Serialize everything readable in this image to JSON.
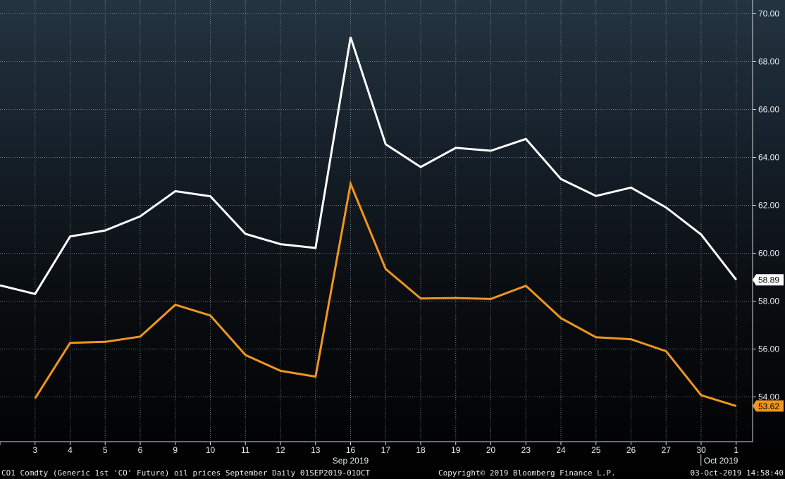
{
  "chart_data": {
    "type": "line",
    "title": "",
    "xlabel": "",
    "ylabel": "",
    "categories": [
      "",
      "3",
      "4",
      "5",
      "6",
      "9",
      "10",
      "11",
      "12",
      "13",
      "16",
      "17",
      "18",
      "19",
      "20",
      "23",
      "24",
      "25",
      "26",
      "27",
      "30",
      "1"
    ],
    "x_dates": [
      "2019-09-02",
      "2019-09-03",
      "2019-09-04",
      "2019-09-05",
      "2019-09-06",
      "2019-09-09",
      "2019-09-10",
      "2019-09-11",
      "2019-09-12",
      "2019-09-13",
      "2019-09-16",
      "2019-09-17",
      "2019-09-18",
      "2019-09-19",
      "2019-09-20",
      "2019-09-23",
      "2019-09-24",
      "2019-09-25",
      "2019-09-26",
      "2019-09-27",
      "2019-09-30",
      "2019-10-01"
    ],
    "period_labels": [
      {
        "text": "Sep 2019",
        "at_category": "16"
      },
      {
        "text": "Oct 2019",
        "at_category": "1"
      }
    ],
    "ylim": [
      53,
      70.5
    ],
    "yticks": [
      "54.00",
      "56.00",
      "58.00",
      "60.00",
      "62.00",
      "64.00",
      "66.00",
      "68.00",
      "70.00"
    ],
    "grid": true,
    "series": [
      {
        "color": "#ffffff",
        "values": [
          58.66,
          58.3,
          60.7,
          60.95,
          61.54,
          62.59,
          62.38,
          60.81,
          60.38,
          60.22,
          69.02,
          64.55,
          63.6,
          64.4,
          64.28,
          64.77,
          63.1,
          62.39,
          62.74,
          61.91,
          60.78,
          58.89
        ],
        "last_label": "58.89"
      },
      {
        "color": "#f0961e",
        "values": [
          null,
          53.94,
          56.26,
          56.3,
          56.52,
          57.85,
          57.4,
          55.75,
          55.09,
          54.85,
          62.9,
          59.34,
          58.11,
          58.13,
          58.09,
          58.64,
          57.29,
          56.49,
          56.41,
          55.91,
          54.07,
          53.62
        ],
        "last_label": "53.62"
      }
    ]
  },
  "footer": {
    "left": "CO1 Comdty (Generic 1st 'CO' Future) oil prices September  Daily 01SEP2019-01OCT",
    "center": "Copyright© 2019 Bloomberg Finance L.P.",
    "right": "03-Oct-2019 14:58:40"
  }
}
